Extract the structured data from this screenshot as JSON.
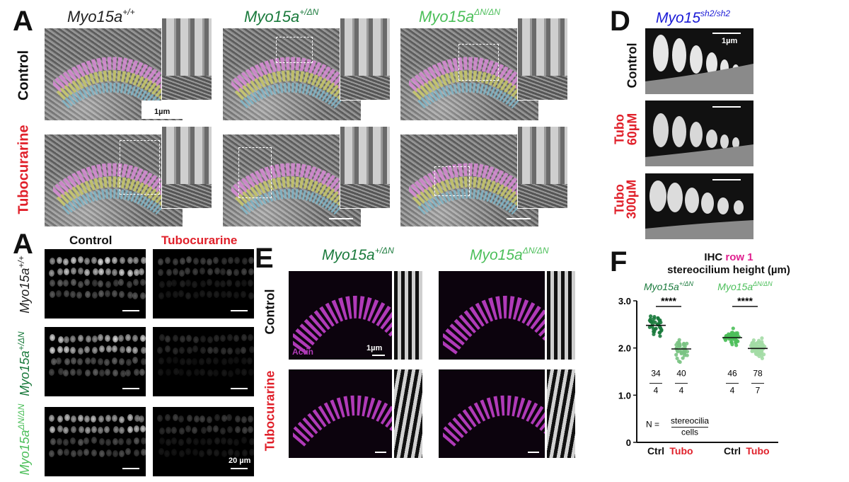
{
  "panel_labels": {
    "a_top": "A",
    "a_bottom": "A",
    "d": "D",
    "e": "E",
    "f": "F"
  },
  "panel_a": {
    "genotypes": [
      {
        "base": "Myo15a",
        "sup": "+/+",
        "color": "#222222"
      },
      {
        "base": "Myo15a",
        "sup": "+/ΔN",
        "color": "#1a7a3c"
      },
      {
        "base": "Myo15a",
        "sup": "ΔN/ΔN",
        "color": "#4cbf5a"
      }
    ],
    "rows": {
      "control": "Control",
      "tubo": "Tubocurarine"
    },
    "scale": "1µm"
  },
  "panel_d": {
    "genotype": {
      "base": "Myo15",
      "sup": "sh2/sh2",
      "color": "#1a1ad6"
    },
    "rows": {
      "control": "Control",
      "tubo60_a": "Tubo",
      "tubo60_b": "60µM",
      "tubo300_a": "Tubo",
      "tubo300_b": "300µM"
    },
    "scale": "1µm"
  },
  "panel_a2": {
    "cols": {
      "control": "Control",
      "tubo": "Tubocurarine"
    },
    "rows": [
      {
        "base": "Myo15a",
        "sup": "+/+",
        "color": "#222222"
      },
      {
        "base": "Myo15a",
        "sup": "+/ΔN",
        "color": "#1a7a3c"
      },
      {
        "base": "Myo15a",
        "sup": "ΔN/ΔN",
        "color": "#4cbf5a"
      }
    ],
    "scale": "20 µm"
  },
  "panel_e": {
    "genotypes": [
      {
        "base": "Myo15a",
        "sup": "+/ΔN",
        "color": "#1a7a3c"
      },
      {
        "base": "Myo15a",
        "sup": "ΔN/ΔN",
        "color": "#4cbf5a"
      }
    ],
    "rows": {
      "control": "Control",
      "tubo": "Tubocurarine"
    },
    "stain": "Actin",
    "scale": "1µm"
  },
  "colors": {
    "red": "#e0202a",
    "pink": "#e0208f",
    "dark_green": "#1a7a3c",
    "light_green": "#4cbf5a",
    "magenta": "#b03ab8"
  },
  "chart_data": {
    "type": "scatter",
    "title_parts": {
      "prefix": "IHC ",
      "highlight": "row 1",
      "line2": "stereocilium height (µm)"
    },
    "groups": [
      {
        "genotype_base": "Myo15a",
        "genotype_sup": "+/ΔN",
        "color": "#1a7a3c",
        "conditions": [
          {
            "label": "Ctrl",
            "label_color": "#111111",
            "mean": 2.48,
            "spread": 0.22,
            "n_stereocilia": "34",
            "n_cells": "4",
            "point_color": "#1a7a3c"
          },
          {
            "label": "Tubo",
            "label_color": "#e0202a",
            "mean": 1.98,
            "spread": 0.18,
            "n_stereocilia": "40",
            "n_cells": "4",
            "point_color": "#7ac383"
          }
        ],
        "significance": "****"
      },
      {
        "genotype_base": "Myo15a",
        "genotype_sup": "ΔN/ΔN",
        "color": "#4cbf5a",
        "conditions": [
          {
            "label": "Ctrl",
            "label_color": "#111111",
            "mean": 2.22,
            "spread": 0.16,
            "n_stereocilia": "46",
            "n_cells": "4",
            "point_color": "#4cbf5a"
          },
          {
            "label": "Tubo",
            "label_color": "#e0202a",
            "mean": 1.99,
            "spread": 0.18,
            "n_stereocilia": "78",
            "n_cells": "7",
            "point_color": "#a3dca5"
          }
        ],
        "significance": "****"
      }
    ],
    "ylim": [
      0,
      3.0
    ],
    "yticks": [
      "0",
      "1.0",
      "2.0",
      "3.0"
    ],
    "n_legend": {
      "prefix": "N =",
      "numerator": "stereocilia",
      "denominator": "cells"
    }
  }
}
